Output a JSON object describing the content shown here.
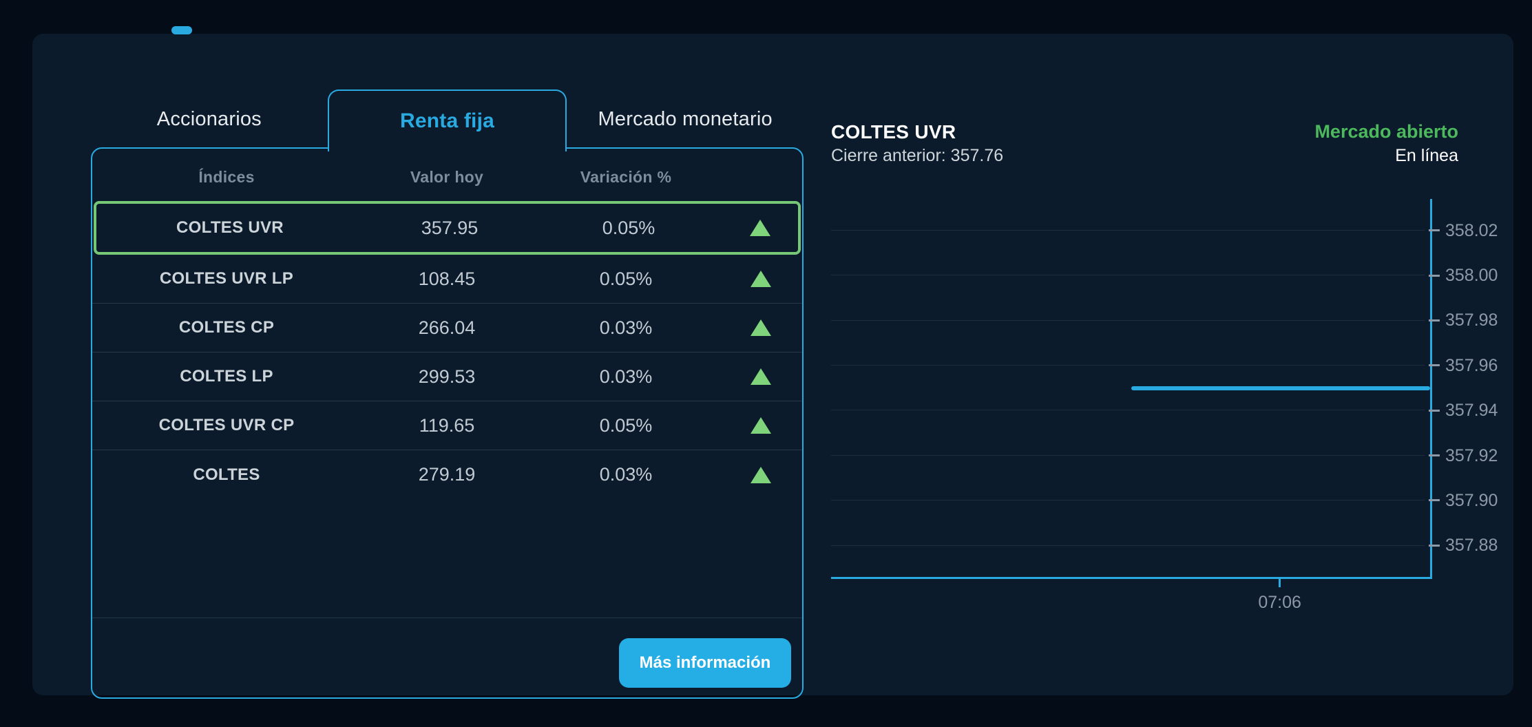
{
  "accent_color": "#29abe2",
  "top_indicator": {
    "color": "#29abe2"
  },
  "tabs": {
    "accionarios_label": "Accionarios",
    "renta_fija_label": "Renta fija",
    "mercado_monetario_label": "Mercado monetario",
    "active": "Renta fija"
  },
  "table": {
    "headers": {
      "indices": "Índices",
      "valor_hoy": "Valor hoy",
      "variacion": "Variación %"
    },
    "rows": [
      {
        "name": "COLTES UVR",
        "value": "357.95",
        "variation": "0.05%",
        "direction": "up",
        "selected": true
      },
      {
        "name": "COLTES UVR LP",
        "value": "108.45",
        "variation": "0.05%",
        "direction": "up",
        "selected": false
      },
      {
        "name": "COLTES CP",
        "value": "266.04",
        "variation": "0.03%",
        "direction": "up",
        "selected": false
      },
      {
        "name": "COLTES LP",
        "value": "299.53",
        "variation": "0.03%",
        "direction": "up",
        "selected": false
      },
      {
        "name": "COLTES UVR CP",
        "value": "119.65",
        "variation": "0.05%",
        "direction": "up",
        "selected": false
      },
      {
        "name": "COLTES",
        "value": "279.19",
        "variation": "0.03%",
        "direction": "up",
        "selected": false
      }
    ],
    "up_color": "#7ed37b",
    "selected_border_color": "#76c776",
    "more_info_label": "Más información"
  },
  "detail": {
    "title": "COLTES UVR",
    "previous_close_text": "Cierre anterior: 357.76",
    "market_status": "Mercado abierto",
    "market_status_color": "#4cb95c",
    "online_status": "En línea"
  },
  "chart_data": {
    "type": "line",
    "title": "COLTES UVR",
    "previous_close": 357.76,
    "current_value": 357.95,
    "ylim": [
      357.866,
      358.034
    ],
    "y_ticks": [
      "358.02",
      "358.00",
      "357.98",
      "357.96",
      "357.94",
      "357.92",
      "357.90",
      "357.88"
    ],
    "x_ticks": [
      {
        "label": "07:06",
        "frac": 0.749
      }
    ],
    "series": [
      {
        "name": "COLTES UVR",
        "value": 357.95,
        "x_start_frac": 0.501,
        "x_end_frac": 1.0
      }
    ],
    "grid": true,
    "line_color": "#29abe2",
    "legend": "none"
  }
}
